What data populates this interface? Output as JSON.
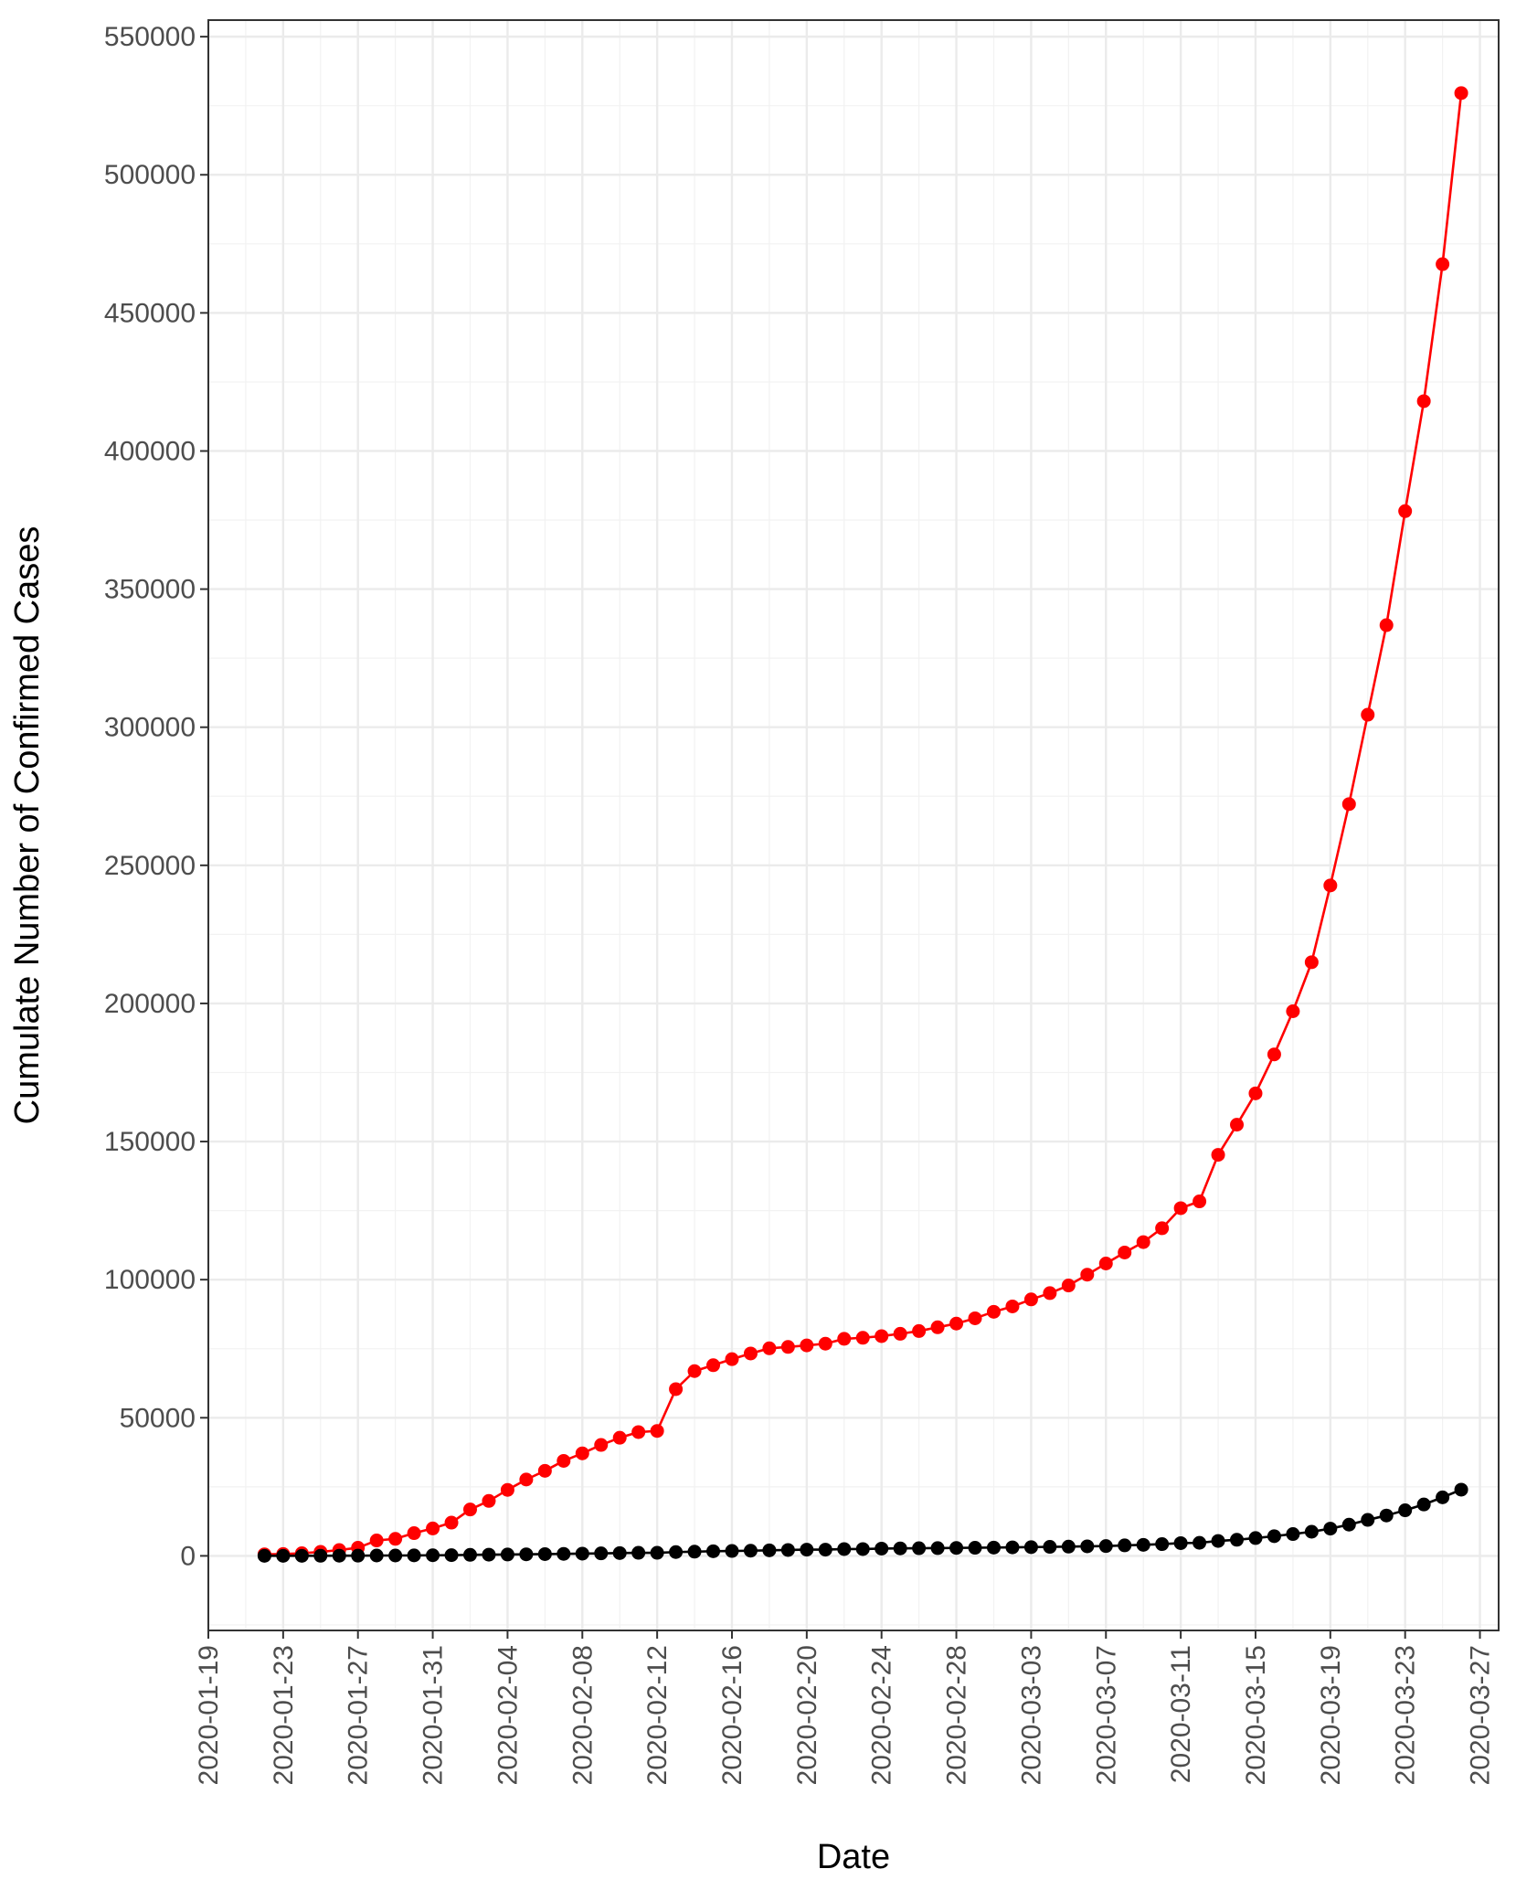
{
  "chart_data": {
    "type": "line",
    "title": "",
    "xlabel": "Date",
    "ylabel": "Cumulate Number of Confirmed Cases",
    "x_start": "2020-01-22",
    "x_ticks": [
      "2020-01-19",
      "2020-01-23",
      "2020-01-27",
      "2020-01-31",
      "2020-02-04",
      "2020-02-08",
      "2020-02-12",
      "2020-02-16",
      "2020-02-20",
      "2020-02-24",
      "2020-02-28",
      "2020-03-03",
      "2020-03-07",
      "2020-03-11",
      "2020-03-15",
      "2020-03-19",
      "2020-03-23",
      "2020-03-27"
    ],
    "xlim": [
      "2020-01-19",
      "2020-03-28"
    ],
    "y_ticks": [
      0,
      50000,
      100000,
      150000,
      200000,
      250000,
      300000,
      350000,
      400000,
      450000,
      500000,
      550000
    ],
    "ylim": [
      -27000,
      556000
    ],
    "grid": true,
    "legend": "none",
    "series": [
      {
        "color": "#ff0000",
        "values": [
          555,
          654,
          941,
          1434,
          2118,
          2927,
          5578,
          6166,
          8234,
          9927,
          12038,
          16787,
          19881,
          23892,
          27635,
          30794,
          34391,
          37120,
          40150,
          42762,
          44802,
          45221,
          60368,
          66885,
          69030,
          71224,
          73258,
          75136,
          75639,
          76197,
          76819,
          78572,
          78958,
          79561,
          80406,
          81388,
          82746,
          84112,
          86011,
          88369,
          90306,
          92840,
          95120,
          97886,
          101801,
          105847,
          109821,
          113590,
          118620,
          125875,
          128343,
          145193,
          156097,
          167449,
          181546,
          197168,
          214915,
          242713,
          272167,
          304528,
          336953,
          378235,
          418045,
          467653,
          529591
        ]
      },
      {
        "color": "#000000",
        "values": [
          17,
          18,
          26,
          42,
          56,
          82,
          131,
          133,
          171,
          213,
          259,
          362,
          426,
          492,
          564,
          634,
          719,
          806,
          906,
          1013,
          1113,
          1118,
          1371,
          1523,
          1666,
          1770,
          1868,
          2007,
          2122,
          2247,
          2251,
          2458,
          2469,
          2629,
          2708,
          2770,
          2814,
          2872,
          2941,
          2996,
          3085,
          3160,
          3254,
          3348,
          3460,
          3558,
          3802,
          3988,
          4262,
          4615,
          4720,
          5404,
          5819,
          6440,
          7126,
          7905,
          8733,
          9867,
          11299,
          13015,
          14623,
          16497,
          18615,
          21181,
          23970
        ]
      }
    ]
  }
}
